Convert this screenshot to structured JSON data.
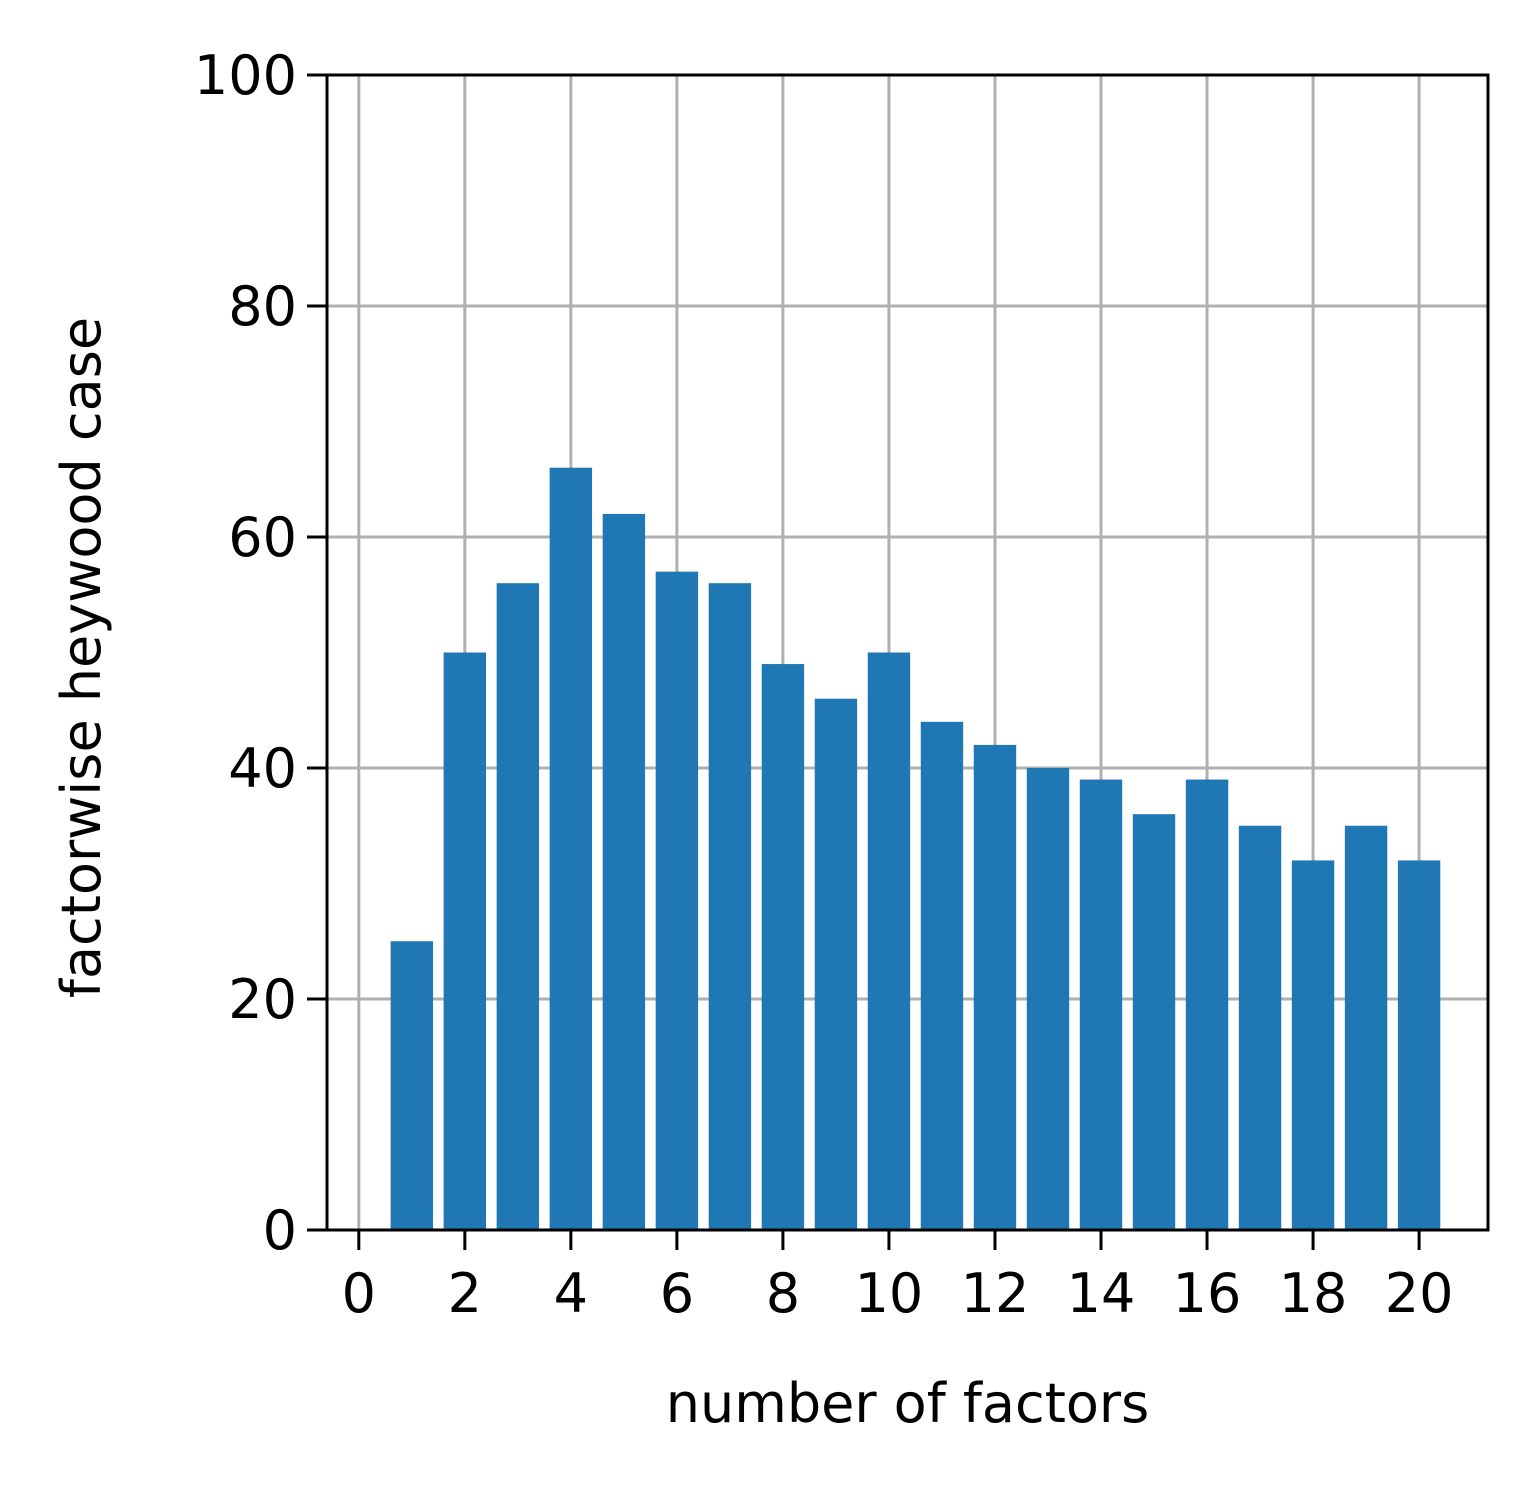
{
  "chart_data": {
    "type": "bar",
    "title": "",
    "xlabel": "number of factors",
    "ylabel": "factorwise heywood case",
    "x": [
      1,
      2,
      3,
      4,
      5,
      6,
      7,
      8,
      9,
      10,
      11,
      12,
      13,
      14,
      15,
      16,
      17,
      18,
      19,
      20
    ],
    "values": [
      25,
      50,
      56,
      66,
      62,
      57,
      56,
      49,
      46,
      50,
      44,
      42,
      40,
      39,
      36,
      39,
      35,
      32,
      35,
      32
    ],
    "xlim": [
      -0.6,
      21.3
    ],
    "ylim": [
      0,
      100
    ],
    "xticks": [
      0,
      2,
      4,
      6,
      8,
      10,
      12,
      14,
      16,
      18,
      20
    ],
    "yticks": [
      0,
      20,
      40,
      60,
      80,
      100
    ],
    "grid": true,
    "bar_color": "#1f77b4",
    "grid_color": "#b0b0b0"
  }
}
